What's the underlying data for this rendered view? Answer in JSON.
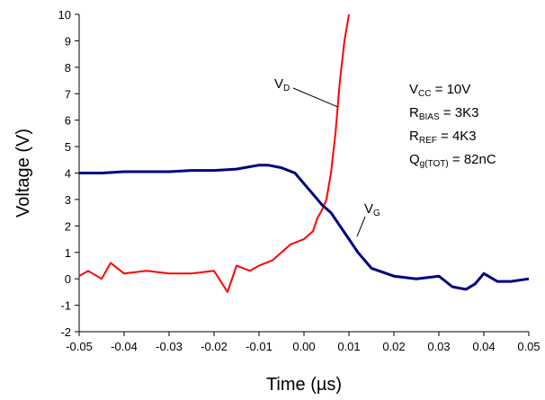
{
  "chart_data": {
    "type": "line",
    "xlabel": "Time (µs)",
    "ylabel": "Voltage (V)",
    "xlim": [
      -0.05,
      0.05
    ],
    "ylim": [
      -2,
      10
    ],
    "grid": false,
    "x_ticks": [
      "-0.05",
      "-0.04",
      "-0.03",
      "-0.02",
      "-0.01",
      "0.00",
      "0.01",
      "0.02",
      "0.03",
      "0.04",
      "0.05"
    ],
    "y_ticks": [
      "-2",
      "-1",
      "0",
      "1",
      "2",
      "3",
      "4",
      "5",
      "6",
      "7",
      "8",
      "9",
      "10"
    ],
    "series": [
      {
        "name": "VD",
        "label_main": "V",
        "label_sub": "D",
        "color": "#ff0000",
        "x": [
          -0.05,
          -0.048,
          -0.045,
          -0.043,
          -0.04,
          -0.035,
          -0.03,
          -0.025,
          -0.02,
          -0.017,
          -0.015,
          -0.012,
          -0.01,
          -0.007,
          -0.005,
          -0.003,
          0.0,
          0.002,
          0.003,
          0.004,
          0.005,
          0.006,
          0.007,
          0.008,
          0.009,
          0.01
        ],
        "y": [
          0.1,
          0.3,
          0.0,
          0.6,
          0.2,
          0.3,
          0.2,
          0.2,
          0.3,
          -0.5,
          0.5,
          0.3,
          0.5,
          0.7,
          1.0,
          1.3,
          1.5,
          1.8,
          2.3,
          2.6,
          3.0,
          4.0,
          5.5,
          7.5,
          9.0,
          10.0
        ]
      },
      {
        "name": "VG",
        "label_main": "V",
        "label_sub": "G",
        "color": "#00007f",
        "x": [
          -0.05,
          -0.045,
          -0.04,
          -0.035,
          -0.03,
          -0.025,
          -0.02,
          -0.015,
          -0.01,
          -0.008,
          -0.005,
          -0.002,
          0.0,
          0.002,
          0.004,
          0.006,
          0.008,
          0.01,
          0.012,
          0.015,
          0.02,
          0.025,
          0.03,
          0.033,
          0.036,
          0.038,
          0.04,
          0.043,
          0.046,
          0.05
        ],
        "y": [
          4.0,
          4.0,
          4.05,
          4.05,
          4.05,
          4.1,
          4.1,
          4.15,
          4.3,
          4.3,
          4.2,
          4.0,
          3.6,
          3.2,
          2.8,
          2.5,
          2.0,
          1.5,
          1.0,
          0.4,
          0.1,
          0.0,
          0.1,
          -0.3,
          -0.4,
          -0.2,
          0.2,
          -0.1,
          -0.1,
          0.0
        ]
      }
    ],
    "annotations": [
      {
        "main": "V",
        "sub": "CC",
        "rest": " = 10V"
      },
      {
        "main": "R",
        "sub": "BIAS",
        "rest": " = 3K3"
      },
      {
        "main": "R",
        "sub": "REF",
        "rest": " = 4K3"
      },
      {
        "main": "Q",
        "sub": "g(TOT)",
        "rest": " = 82nC"
      }
    ]
  }
}
